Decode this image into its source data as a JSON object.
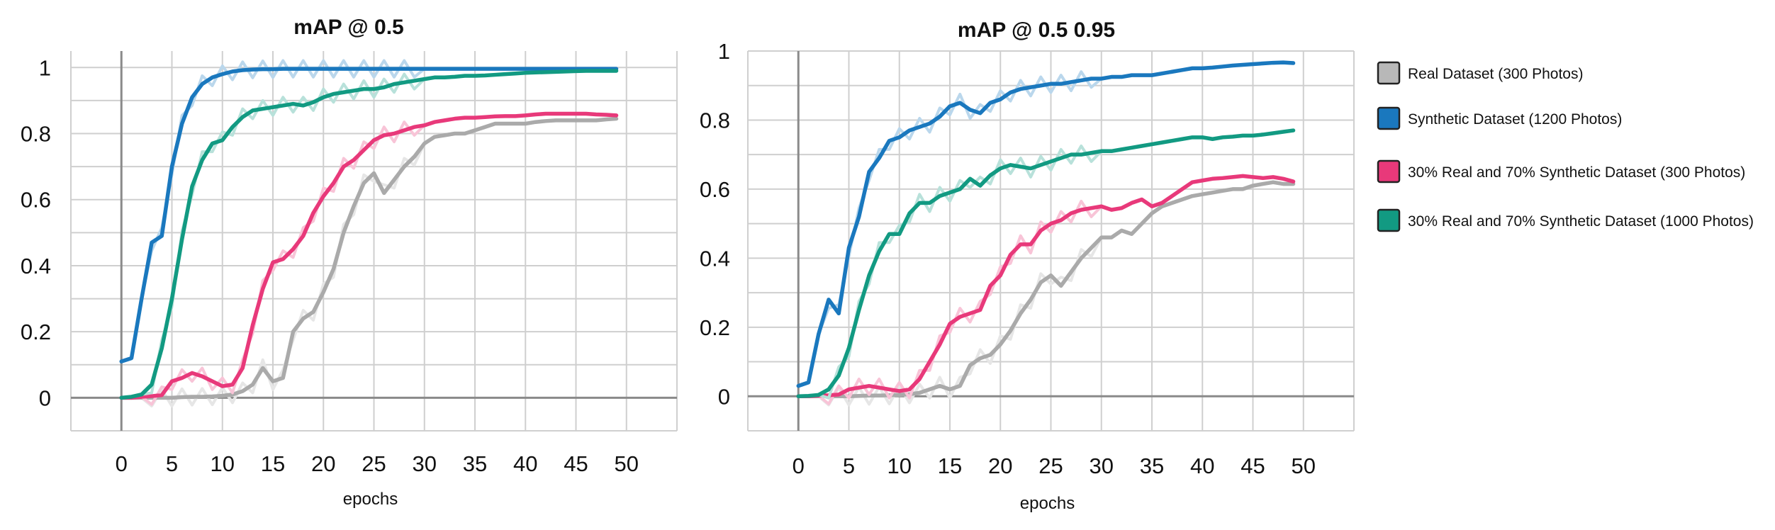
{
  "chart_data": [
    {
      "type": "line",
      "title": "mAP @ 0.5",
      "xlabel": "epochs",
      "ylabel": "",
      "xlim": [
        -5,
        55
      ],
      "ylim": [
        -0.1,
        1.05
      ],
      "x_ticks": [
        "0",
        "5",
        "10",
        "15",
        "20",
        "25",
        "30",
        "35",
        "40",
        "45",
        "50"
      ],
      "y_ticks": [
        "0",
        "0.2",
        "0.4",
        "0.6",
        "0.8",
        "1"
      ],
      "grid": true,
      "series": [
        {
          "name": "Real Dataset (300 Photos)",
          "color": "#aaaaaa",
          "x": [
            0,
            1,
            2,
            3,
            4,
            5,
            6,
            7,
            8,
            9,
            10,
            11,
            12,
            13,
            14,
            15,
            16,
            17,
            18,
            19,
            20,
            21,
            22,
            23,
            24,
            25,
            26,
            27,
            28,
            29,
            30,
            31,
            32,
            33,
            34,
            35,
            36,
            37,
            38,
            39,
            40,
            41,
            42,
            43,
            44,
            45,
            46,
            47,
            48,
            49
          ],
          "values": [
            0,
            0,
            0,
            0,
            0,
            0,
            0.002,
            0.003,
            0.003,
            0.004,
            0.006,
            0.01,
            0.02,
            0.04,
            0.09,
            0.05,
            0.06,
            0.2,
            0.24,
            0.26,
            0.32,
            0.39,
            0.5,
            0.58,
            0.65,
            0.68,
            0.62,
            0.66,
            0.7,
            0.73,
            0.77,
            0.79,
            0.795,
            0.8,
            0.8,
            0.81,
            0.82,
            0.83,
            0.83,
            0.83,
            0.83,
            0.835,
            0.838,
            0.84,
            0.84,
            0.84,
            0.84,
            0.84,
            0.843,
            0.845
          ]
        },
        {
          "name": "Synthetic Dataset (1200 Photos)",
          "color": "#1a78be",
          "x": [
            0,
            1,
            2,
            3,
            4,
            5,
            6,
            7,
            8,
            9,
            10,
            11,
            12,
            13,
            14,
            15,
            16,
            17,
            18,
            19,
            20,
            21,
            22,
            23,
            24,
            25,
            26,
            27,
            28,
            29,
            30,
            31,
            32,
            33,
            34,
            35,
            36,
            37,
            38,
            39,
            40,
            41,
            42,
            43,
            44,
            45,
            46,
            47,
            48,
            49
          ],
          "values": [
            0.11,
            0.12,
            0.3,
            0.47,
            0.49,
            0.7,
            0.83,
            0.91,
            0.95,
            0.97,
            0.98,
            0.988,
            0.992,
            0.994,
            0.995,
            0.995,
            0.996,
            0.996,
            0.996,
            0.996,
            0.996,
            0.996,
            0.996,
            0.996,
            0.996,
            0.996,
            0.996,
            0.996,
            0.996,
            0.996,
            0.996,
            0.996,
            0.996,
            0.996,
            0.996,
            0.996,
            0.996,
            0.996,
            0.996,
            0.996,
            0.996,
            0.996,
            0.996,
            0.996,
            0.996,
            0.996,
            0.996,
            0.996,
            0.996,
            0.996
          ]
        },
        {
          "name": "30% Real and 70% Synthetic Dataset (300 Photos)",
          "color": "#e8397a",
          "x": [
            0,
            1,
            2,
            3,
            4,
            5,
            6,
            7,
            8,
            9,
            10,
            11,
            12,
            13,
            14,
            15,
            16,
            17,
            18,
            19,
            20,
            21,
            22,
            23,
            24,
            25,
            26,
            27,
            28,
            29,
            30,
            31,
            32,
            33,
            34,
            35,
            36,
            37,
            38,
            39,
            40,
            41,
            42,
            43,
            44,
            45,
            46,
            47,
            48,
            49
          ],
          "values": [
            0,
            0,
            0.003,
            0.005,
            0.008,
            0.05,
            0.06,
            0.075,
            0.065,
            0.05,
            0.035,
            0.04,
            0.09,
            0.22,
            0.33,
            0.41,
            0.42,
            0.45,
            0.49,
            0.56,
            0.61,
            0.65,
            0.7,
            0.72,
            0.75,
            0.78,
            0.795,
            0.8,
            0.81,
            0.82,
            0.825,
            0.835,
            0.84,
            0.845,
            0.848,
            0.848,
            0.85,
            0.852,
            0.853,
            0.853,
            0.855,
            0.858,
            0.86,
            0.86,
            0.86,
            0.86,
            0.86,
            0.858,
            0.857,
            0.855
          ]
        },
        {
          "name": "30% Real and 70% Synthetic Dataset (1000 Photos)",
          "color": "#129a82",
          "x": [
            0,
            1,
            2,
            3,
            4,
            5,
            6,
            7,
            8,
            9,
            10,
            11,
            12,
            13,
            14,
            15,
            16,
            17,
            18,
            19,
            20,
            21,
            22,
            23,
            24,
            25,
            26,
            27,
            28,
            29,
            30,
            31,
            32,
            33,
            34,
            35,
            36,
            37,
            38,
            39,
            40,
            41,
            42,
            43,
            44,
            45,
            46,
            47,
            48,
            49
          ],
          "values": [
            0,
            0.003,
            0.01,
            0.04,
            0.15,
            0.3,
            0.48,
            0.64,
            0.72,
            0.77,
            0.78,
            0.82,
            0.85,
            0.87,
            0.875,
            0.88,
            0.885,
            0.89,
            0.885,
            0.895,
            0.91,
            0.92,
            0.925,
            0.93,
            0.935,
            0.935,
            0.94,
            0.95,
            0.955,
            0.96,
            0.965,
            0.97,
            0.97,
            0.972,
            0.975,
            0.975,
            0.976,
            0.978,
            0.98,
            0.982,
            0.984,
            0.985,
            0.986,
            0.987,
            0.988,
            0.989,
            0.99,
            0.99,
            0.99,
            0.99
          ]
        }
      ]
    },
    {
      "type": "line",
      "title": "mAP @ 0.5 0.95",
      "xlabel": "epochs",
      "ylabel": "",
      "xlim": [
        -5,
        55
      ],
      "ylim": [
        -0.1,
        1.0
      ],
      "x_ticks": [
        "0",
        "5",
        "10",
        "15",
        "20",
        "25",
        "30",
        "35",
        "40",
        "45",
        "50"
      ],
      "y_ticks": [
        "0",
        "0.2",
        "0.4",
        "0.6",
        "0.8",
        "1"
      ],
      "grid": true,
      "series": [
        {
          "name": "Real Dataset (300 Photos)",
          "color": "#aaaaaa",
          "x": [
            0,
            1,
            2,
            3,
            4,
            5,
            6,
            7,
            8,
            9,
            10,
            11,
            12,
            13,
            14,
            15,
            16,
            17,
            18,
            19,
            20,
            21,
            22,
            23,
            24,
            25,
            26,
            27,
            28,
            29,
            30,
            31,
            32,
            33,
            34,
            35,
            36,
            37,
            38,
            39,
            40,
            41,
            42,
            43,
            44,
            45,
            46,
            47,
            48,
            49
          ],
          "values": [
            0,
            0,
            0,
            0,
            0,
            0,
            0.001,
            0.002,
            0.002,
            0.003,
            0.004,
            0.006,
            0.01,
            0.02,
            0.03,
            0.02,
            0.03,
            0.09,
            0.11,
            0.12,
            0.15,
            0.19,
            0.24,
            0.28,
            0.33,
            0.35,
            0.32,
            0.36,
            0.4,
            0.43,
            0.46,
            0.46,
            0.48,
            0.47,
            0.5,
            0.53,
            0.55,
            0.56,
            0.57,
            0.58,
            0.585,
            0.59,
            0.595,
            0.6,
            0.6,
            0.61,
            0.615,
            0.62,
            0.615,
            0.615
          ]
        },
        {
          "name": "Synthetic Dataset (1200 Photos)",
          "color": "#1a78be",
          "x": [
            0,
            1,
            2,
            3,
            4,
            5,
            6,
            7,
            8,
            9,
            10,
            11,
            12,
            13,
            14,
            15,
            16,
            17,
            18,
            19,
            20,
            21,
            22,
            23,
            24,
            25,
            26,
            27,
            28,
            29,
            30,
            31,
            32,
            33,
            34,
            35,
            36,
            37,
            38,
            39,
            40,
            41,
            42,
            43,
            44,
            45,
            46,
            47,
            48,
            49
          ],
          "values": [
            0.03,
            0.04,
            0.18,
            0.28,
            0.24,
            0.43,
            0.52,
            0.65,
            0.69,
            0.74,
            0.75,
            0.77,
            0.78,
            0.79,
            0.81,
            0.84,
            0.85,
            0.83,
            0.82,
            0.85,
            0.86,
            0.88,
            0.89,
            0.895,
            0.9,
            0.905,
            0.905,
            0.91,
            0.915,
            0.92,
            0.92,
            0.925,
            0.925,
            0.93,
            0.93,
            0.93,
            0.935,
            0.94,
            0.945,
            0.95,
            0.95,
            0.952,
            0.955,
            0.958,
            0.96,
            0.962,
            0.964,
            0.966,
            0.967,
            0.965
          ]
        },
        {
          "name": "30% Real and 70% Synthetic Dataset (300 Photos)",
          "color": "#e8397a",
          "x": [
            0,
            1,
            2,
            3,
            4,
            5,
            6,
            7,
            8,
            9,
            10,
            11,
            12,
            13,
            14,
            15,
            16,
            17,
            18,
            19,
            20,
            21,
            22,
            23,
            24,
            25,
            26,
            27,
            28,
            29,
            30,
            31,
            32,
            33,
            34,
            35,
            36,
            37,
            38,
            39,
            40,
            41,
            42,
            43,
            44,
            45,
            46,
            47,
            48,
            49
          ],
          "values": [
            0,
            0,
            0.002,
            0.003,
            0.005,
            0.02,
            0.025,
            0.03,
            0.025,
            0.02,
            0.015,
            0.02,
            0.05,
            0.1,
            0.15,
            0.21,
            0.23,
            0.24,
            0.25,
            0.32,
            0.35,
            0.41,
            0.44,
            0.44,
            0.48,
            0.5,
            0.51,
            0.53,
            0.54,
            0.545,
            0.55,
            0.54,
            0.545,
            0.56,
            0.57,
            0.55,
            0.56,
            0.58,
            0.6,
            0.62,
            0.625,
            0.63,
            0.632,
            0.635,
            0.638,
            0.635,
            0.632,
            0.635,
            0.63,
            0.622
          ]
        },
        {
          "name": "30% Real and 70% Synthetic Dataset (1000 Photos)",
          "color": "#129a82",
          "x": [
            0,
            1,
            2,
            3,
            4,
            5,
            6,
            7,
            8,
            9,
            10,
            11,
            12,
            13,
            14,
            15,
            16,
            17,
            18,
            19,
            20,
            21,
            22,
            23,
            24,
            25,
            26,
            27,
            28,
            29,
            30,
            31,
            32,
            33,
            34,
            35,
            36,
            37,
            38,
            39,
            40,
            41,
            42,
            43,
            44,
            45,
            46,
            47,
            48,
            49
          ],
          "values": [
            0,
            0.001,
            0.004,
            0.02,
            0.06,
            0.14,
            0.25,
            0.35,
            0.42,
            0.47,
            0.47,
            0.53,
            0.56,
            0.56,
            0.58,
            0.59,
            0.6,
            0.63,
            0.61,
            0.64,
            0.66,
            0.67,
            0.665,
            0.66,
            0.67,
            0.68,
            0.69,
            0.7,
            0.7,
            0.705,
            0.71,
            0.71,
            0.715,
            0.72,
            0.725,
            0.73,
            0.735,
            0.74,
            0.745,
            0.75,
            0.75,
            0.745,
            0.75,
            0.752,
            0.755,
            0.755,
            0.758,
            0.762,
            0.766,
            0.77
          ]
        }
      ]
    }
  ],
  "legend": {
    "placement": "right",
    "entries": [
      {
        "label": "Real Dataset (300 Photos)",
        "color": "#b8b8b8"
      },
      {
        "label": "Synthetic Dataset (1200 Photos)",
        "color": "#1a78be"
      },
      {
        "label": "30% Real and 70% Synthetic Dataset (300 Photos)",
        "color": "#e8397a"
      },
      {
        "label": "30% Real and 70% Synthetic Dataset (1000 Photos)",
        "color": "#129a82"
      }
    ]
  }
}
